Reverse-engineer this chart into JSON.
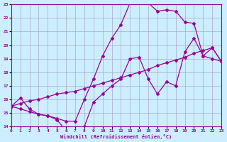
{
  "xlabel": "Windchill (Refroidissement éolien,°C)",
  "background_color": "#cceeff",
  "grid_color": "#aaaacc",
  "line_color": "#990099",
  "xmin": 0,
  "xmax": 23,
  "ymin": 14,
  "ymax": 23,
  "xticks": [
    0,
    1,
    2,
    3,
    4,
    5,
    6,
    7,
    8,
    9,
    10,
    11,
    12,
    13,
    14,
    15,
    16,
    17,
    18,
    19,
    20,
    21,
    22,
    23
  ],
  "yticks": [
    14,
    15,
    16,
    17,
    18,
    19,
    20,
    21,
    22,
    23
  ],
  "line1_x": [
    0,
    1,
    2,
    3,
    4,
    5,
    6,
    7,
    8,
    9,
    10,
    11,
    12,
    13,
    14,
    15,
    16,
    17,
    18,
    19,
    20,
    21,
    22,
    23
  ],
  "line1_y": [
    15.5,
    16.1,
    15.3,
    14.9,
    14.8,
    14.5,
    13.7,
    13.7,
    14.0,
    15.8,
    16.4,
    17.0,
    17.5,
    19.0,
    19.1,
    17.5,
    16.4,
    17.3,
    17.0,
    19.5,
    20.5,
    19.2,
    19.0,
    18.8
  ],
  "line2_x": [
    0,
    1,
    2,
    3,
    4,
    5,
    6,
    7,
    8,
    9,
    10,
    11,
    12,
    13,
    14,
    15,
    16,
    17,
    18,
    19,
    20,
    21,
    22,
    23
  ],
  "line2_y": [
    15.5,
    15.7,
    15.9,
    16.0,
    16.2,
    16.4,
    16.5,
    16.6,
    16.8,
    17.0,
    17.2,
    17.4,
    17.6,
    17.8,
    18.0,
    18.2,
    18.5,
    18.7,
    18.9,
    19.1,
    19.4,
    19.6,
    19.8,
    18.8
  ],
  "line3_x": [
    0,
    1,
    2,
    3,
    4,
    5,
    6,
    7,
    8,
    9,
    10,
    11,
    12,
    13,
    14,
    15,
    16,
    17,
    18,
    19,
    20,
    21,
    22,
    23
  ],
  "line3_y": [
    15.5,
    15.3,
    15.1,
    14.9,
    14.8,
    14.6,
    14.4,
    14.4,
    16.0,
    17.5,
    19.2,
    20.5,
    21.5,
    23.1,
    23.2,
    23.1,
    22.5,
    22.6,
    22.5,
    21.7,
    21.6,
    19.2,
    19.8,
    18.8
  ]
}
